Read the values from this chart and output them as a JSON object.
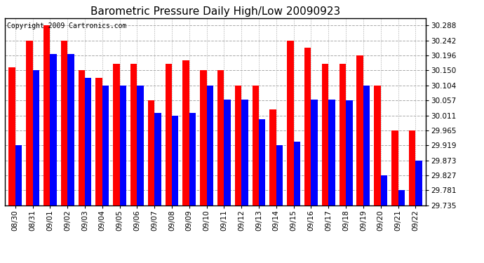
{
  "title": "Barometric Pressure Daily High/Low 20090923",
  "copyright": "Copyright 2009 Cartronics.com",
  "dates": [
    "08/30",
    "08/31",
    "09/01",
    "09/02",
    "09/03",
    "09/04",
    "09/05",
    "09/06",
    "09/07",
    "09/08",
    "09/09",
    "09/10",
    "09/11",
    "09/12",
    "09/13",
    "09/14",
    "09/15",
    "09/16",
    "09/17",
    "09/18",
    "09/19",
    "09/20",
    "09/21",
    "09/22"
  ],
  "highs": [
    30.16,
    30.242,
    30.288,
    30.242,
    30.15,
    30.127,
    30.17,
    30.17,
    30.057,
    30.17,
    30.18,
    30.15,
    30.15,
    30.104,
    30.104,
    30.03,
    30.242,
    30.22,
    30.17,
    30.17,
    30.196,
    30.104,
    29.965,
    29.965
  ],
  "lows": [
    29.919,
    30.15,
    30.2,
    30.2,
    30.127,
    30.104,
    30.104,
    30.104,
    30.02,
    30.011,
    30.02,
    30.104,
    30.06,
    30.06,
    30.0,
    29.919,
    29.93,
    30.06,
    30.06,
    30.057,
    30.104,
    29.827,
    29.781,
    29.873
  ],
  "high_color": "#ff0000",
  "low_color": "#0000ff",
  "bg_color": "#ffffff",
  "grid_color": "#aaaaaa",
  "ymin": 29.735,
  "ymax": 30.31,
  "yticks": [
    29.735,
    29.781,
    29.827,
    29.873,
    29.919,
    29.965,
    30.011,
    30.057,
    30.104,
    30.15,
    30.196,
    30.242,
    30.288
  ],
  "bar_width": 0.38,
  "title_fontsize": 11,
  "tick_fontsize": 7.5,
  "copyright_fontsize": 7
}
